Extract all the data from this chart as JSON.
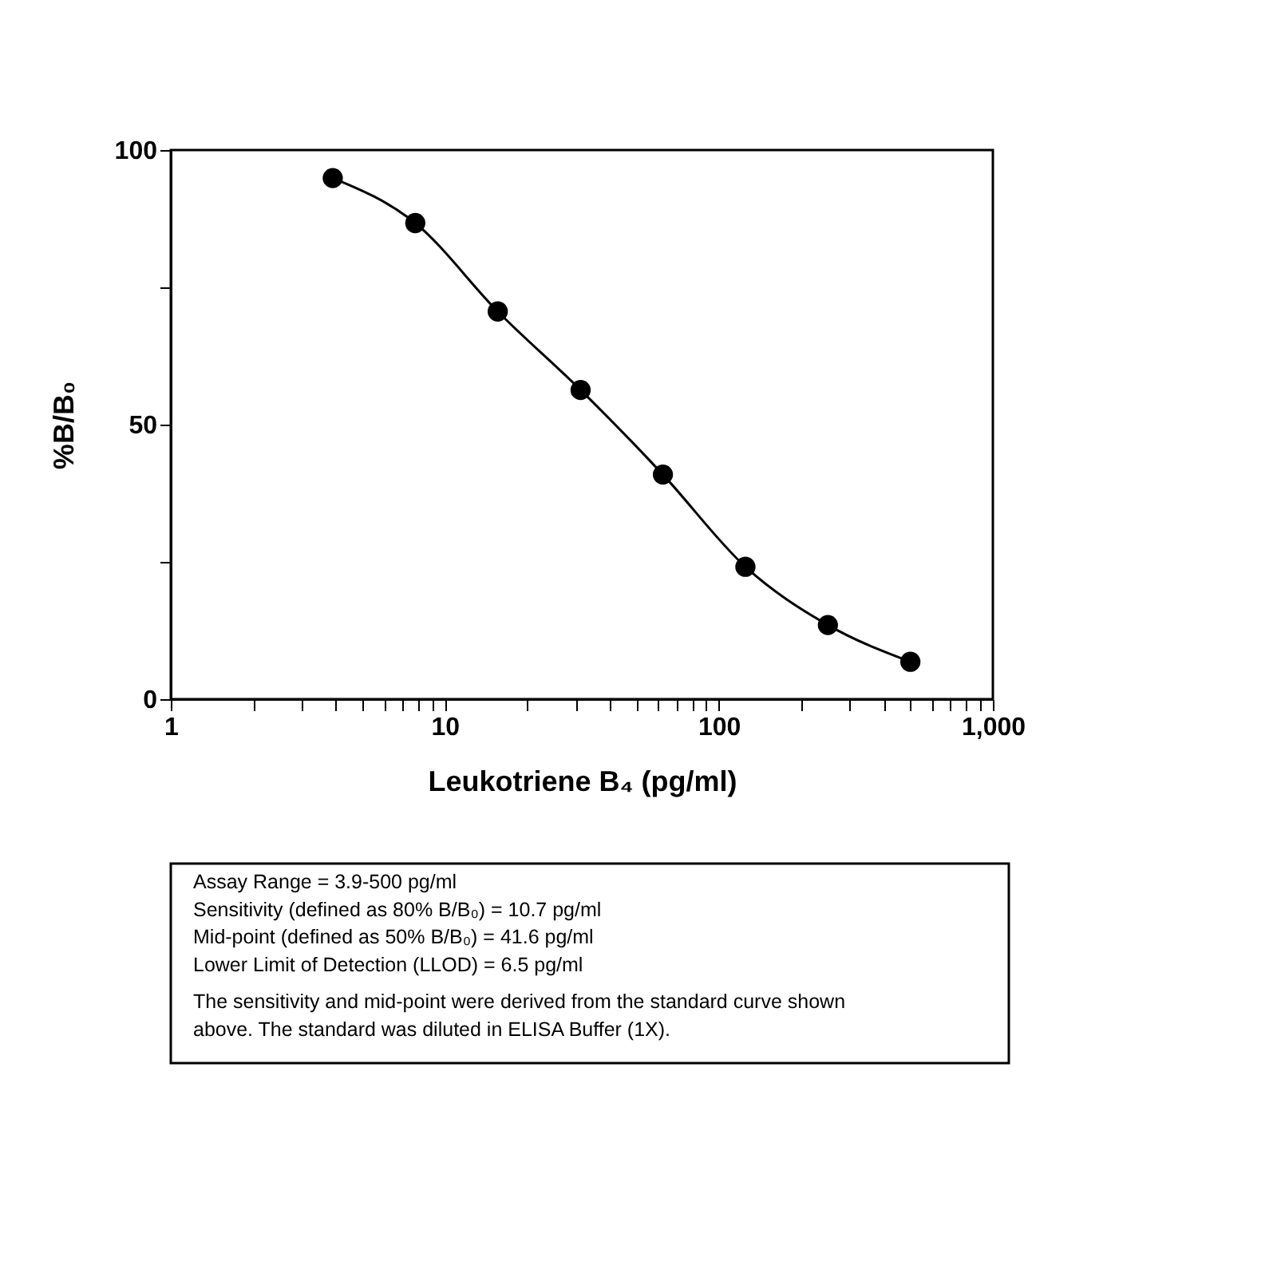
{
  "chart_data": {
    "type": "scatter",
    "xlabel": "Leukotriene B₄ (pg/ml)",
    "ylabel": "%B/B₀",
    "log": "x",
    "xlim": [
      1,
      1000
    ],
    "ylim": [
      0,
      100
    ],
    "xticks": [
      1,
      {
        "value": 2,
        "label": null
      },
      {
        "value": 3,
        "label": null
      },
      {
        "value": 4,
        "label": null
      },
      {
        "value": 5,
        "label": null
      },
      {
        "value": 6,
        "label": null
      },
      {
        "value": 7,
        "label": null
      },
      {
        "value": 8,
        "label": null
      },
      {
        "value": 9,
        "label": null
      },
      10,
      {
        "value": 20,
        "label": null
      },
      {
        "value": 30,
        "label": null
      },
      {
        "value": 40,
        "label": null
      },
      {
        "value": 50,
        "label": null
      },
      {
        "value": 60,
        "label": null
      },
      {
        "value": 70,
        "label": null
      },
      {
        "value": 80,
        "label": null
      },
      {
        "value": 90,
        "label": null
      },
      100,
      {
        "value": 200,
        "label": null
      },
      {
        "value": 300,
        "label": null
      },
      {
        "value": 400,
        "label": null
      },
      {
        "value": 500,
        "label": null
      },
      {
        "value": 600,
        "label": null
      },
      {
        "value": 700,
        "label": null
      },
      {
        "value": 800,
        "label": null
      },
      {
        "value": 900,
        "label": null
      },
      {
        "value": 1000,
        "label": "1,000"
      }
    ],
    "yticks": [
      0,
      {
        "value": 25,
        "label": null
      },
      50,
      {
        "value": 75,
        "label": null
      },
      100
    ],
    "grid": false,
    "series": [
      {
        "type": "line",
        "color": "#000000",
        "x": [
          3.9,
          7.8,
          15.6,
          31.3,
          62.5,
          125,
          250,
          500
        ],
        "values": [
          94.9,
          86.7,
          70.6,
          56.3,
          40.9,
          24.1,
          13.5,
          6.8
        ]
      },
      {
        "color": "#000000",
        "marker": "circle",
        "x": [
          3.9,
          7.8,
          15.6,
          31.3,
          62.5,
          125,
          250,
          500
        ],
        "values": [
          94.9,
          86.7,
          70.6,
          56.3,
          40.9,
          24.1,
          13.5,
          6.8
        ]
      }
    ],
    "annotations": [
      "Assay Range = 3.9-500 pg/ml",
      "Sensitivity (defined as 80% B/B₀) =  10.7 pg/ml",
      "Mid-point (defined as 50% B/B₀) =  41.6 pg/ml",
      "Lower Limit of Detection (LLOD) =  6.5 pg/ml",
      "The sensitivity and mid-point were derived from the standard curve shown",
      "above. The standard was diluted in ELISA Buffer (1X)."
    ]
  }
}
